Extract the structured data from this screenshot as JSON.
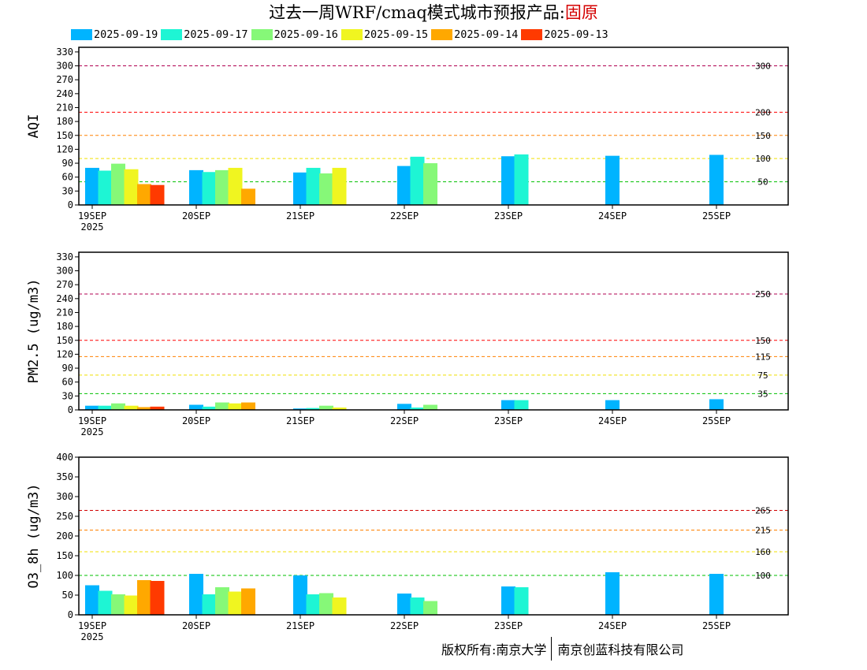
{
  "title": {
    "prefix": "过去一周WRF/cmaq模式城市预报产品:",
    "city": "固原"
  },
  "colors": {
    "2025-09-19": "#00b4ff",
    "2025-09-17": "#1ef5d4",
    "2025-09-16": "#86f878",
    "2025-09-15": "#f0f520",
    "2025-09-14": "#ffa800",
    "2025-09-13": "#ff3a00"
  },
  "legend": [
    "2025-09-19",
    "2025-09-17",
    "2025-09-16",
    "2025-09-15",
    "2025-09-14",
    "2025-09-13"
  ],
  "chart_data": [
    {
      "type": "bar",
      "ylabel": "AQI",
      "ylim": [
        0,
        340
      ],
      "yticks": [
        0,
        30,
        60,
        90,
        120,
        150,
        180,
        210,
        240,
        270,
        300,
        330
      ],
      "x_tick_labels": [
        "19SEP",
        "20SEP",
        "21SEP",
        "22SEP",
        "23SEP",
        "24SEP",
        "25SEP"
      ],
      "x_year_label": "2025",
      "reference_lines": [
        {
          "value": 50,
          "label": "50",
          "color": "#00c000"
        },
        {
          "value": 100,
          "label": "100",
          "color": "#f0e000"
        },
        {
          "value": 150,
          "label": "150",
          "color": "#ff8000"
        },
        {
          "value": 200,
          "label": "200",
          "color": "#ff0000"
        },
        {
          "value": 300,
          "label": "300",
          "color": "#b00050"
        }
      ],
      "days": [
        {
          "day": "19SEP",
          "bars": [
            {
              "run": "2025-09-19",
              "value": 80
            },
            {
              "run": "2025-09-17",
              "value": 74
            },
            {
              "run": "2025-09-16",
              "value": 89
            },
            {
              "run": "2025-09-15",
              "value": 77
            },
            {
              "run": "2025-09-14",
              "value": 45
            },
            {
              "run": "2025-09-13",
              "value": 43
            }
          ]
        },
        {
          "day": "20SEP",
          "bars": [
            {
              "run": "2025-09-19",
              "value": 75
            },
            {
              "run": "2025-09-17",
              "value": 71
            },
            {
              "run": "2025-09-16",
              "value": 75
            },
            {
              "run": "2025-09-15",
              "value": 80
            },
            {
              "run": "2025-09-14",
              "value": 35
            }
          ]
        },
        {
          "day": "21SEP",
          "bars": [
            {
              "run": "2025-09-19",
              "value": 70
            },
            {
              "run": "2025-09-17",
              "value": 80
            },
            {
              "run": "2025-09-16",
              "value": 68
            },
            {
              "run": "2025-09-15",
              "value": 80
            }
          ]
        },
        {
          "day": "22SEP",
          "bars": [
            {
              "run": "2025-09-19",
              "value": 84
            },
            {
              "run": "2025-09-17",
              "value": 104
            },
            {
              "run": "2025-09-16",
              "value": 90
            }
          ]
        },
        {
          "day": "23SEP",
          "bars": [
            {
              "run": "2025-09-19",
              "value": 105
            },
            {
              "run": "2025-09-17",
              "value": 109
            }
          ]
        },
        {
          "day": "24SEP",
          "bars": [
            {
              "run": "2025-09-19",
              "value": 106
            }
          ]
        },
        {
          "day": "25SEP",
          "bars": [
            {
              "run": "2025-09-19",
              "value": 108
            }
          ]
        }
      ]
    },
    {
      "type": "bar",
      "ylabel": "PM2.5 (ug/m3)",
      "ylim": [
        0,
        340
      ],
      "yticks": [
        0,
        30,
        60,
        90,
        120,
        150,
        180,
        210,
        240,
        270,
        300,
        330
      ],
      "x_tick_labels": [
        "19SEP",
        "20SEP",
        "21SEP",
        "22SEP",
        "23SEP",
        "24SEP",
        "25SEP"
      ],
      "x_year_label": "2025",
      "reference_lines": [
        {
          "value": 35,
          "label": "35",
          "color": "#00c000"
        },
        {
          "value": 75,
          "label": "75",
          "color": "#f0e000"
        },
        {
          "value": 115,
          "label": "115",
          "color": "#ff8000"
        },
        {
          "value": 150,
          "label": "150",
          "color": "#ff0000"
        },
        {
          "value": 250,
          "label": "250",
          "color": "#b00050"
        }
      ],
      "days": [
        {
          "day": "19SEP",
          "bars": [
            {
              "run": "2025-09-19",
              "value": 9
            },
            {
              "run": "2025-09-17",
              "value": 9
            },
            {
              "run": "2025-09-16",
              "value": 14
            },
            {
              "run": "2025-09-15",
              "value": 9
            },
            {
              "run": "2025-09-14",
              "value": 6
            },
            {
              "run": "2025-09-13",
              "value": 7
            }
          ]
        },
        {
          "day": "20SEP",
          "bars": [
            {
              "run": "2025-09-19",
              "value": 11
            },
            {
              "run": "2025-09-17",
              "value": 7
            },
            {
              "run": "2025-09-16",
              "value": 16
            },
            {
              "run": "2025-09-15",
              "value": 14
            },
            {
              "run": "2025-09-14",
              "value": 16
            }
          ]
        },
        {
          "day": "21SEP",
          "bars": [
            {
              "run": "2025-09-19",
              "value": 3
            },
            {
              "run": "2025-09-17",
              "value": 4
            },
            {
              "run": "2025-09-16",
              "value": 9
            },
            {
              "run": "2025-09-15",
              "value": 5
            }
          ]
        },
        {
          "day": "22SEP",
          "bars": [
            {
              "run": "2025-09-19",
              "value": 13
            },
            {
              "run": "2025-09-17",
              "value": 5
            },
            {
              "run": "2025-09-16",
              "value": 11
            }
          ]
        },
        {
          "day": "23SEP",
          "bars": [
            {
              "run": "2025-09-19",
              "value": 21
            },
            {
              "run": "2025-09-17",
              "value": 21
            }
          ]
        },
        {
          "day": "24SEP",
          "bars": [
            {
              "run": "2025-09-19",
              "value": 21
            }
          ]
        },
        {
          "day": "25SEP",
          "bars": [
            {
              "run": "2025-09-19",
              "value": 23
            }
          ]
        }
      ]
    },
    {
      "type": "bar",
      "ylabel": "O3_8h (ug/m3)",
      "ylim": [
        0,
        400
      ],
      "yticks": [
        0,
        50,
        100,
        150,
        200,
        250,
        300,
        350,
        400
      ],
      "x_tick_labels": [
        "19SEP",
        "20SEP",
        "21SEP",
        "22SEP",
        "23SEP",
        "24SEP",
        "25SEP"
      ],
      "x_year_label": "2025",
      "reference_lines": [
        {
          "value": 100,
          "label": "100",
          "color": "#00c000"
        },
        {
          "value": 160,
          "label": "160",
          "color": "#f0e000"
        },
        {
          "value": 215,
          "label": "215",
          "color": "#ff8000"
        },
        {
          "value": 265,
          "label": "265",
          "color": "#d00000"
        }
      ],
      "days": [
        {
          "day": "19SEP",
          "bars": [
            {
              "run": "2025-09-19",
              "value": 75
            },
            {
              "run": "2025-09-17",
              "value": 61
            },
            {
              "run": "2025-09-16",
              "value": 52
            },
            {
              "run": "2025-09-15",
              "value": 49
            },
            {
              "run": "2025-09-14",
              "value": 88
            },
            {
              "run": "2025-09-13",
              "value": 86
            }
          ]
        },
        {
          "day": "20SEP",
          "bars": [
            {
              "run": "2025-09-19",
              "value": 104
            },
            {
              "run": "2025-09-17",
              "value": 52
            },
            {
              "run": "2025-09-16",
              "value": 70
            },
            {
              "run": "2025-09-15",
              "value": 59
            },
            {
              "run": "2025-09-14",
              "value": 67
            }
          ]
        },
        {
          "day": "21SEP",
          "bars": [
            {
              "run": "2025-09-19",
              "value": 100
            },
            {
              "run": "2025-09-17",
              "value": 52
            },
            {
              "run": "2025-09-16",
              "value": 55
            },
            {
              "run": "2025-09-15",
              "value": 44
            }
          ]
        },
        {
          "day": "22SEP",
          "bars": [
            {
              "run": "2025-09-19",
              "value": 54
            },
            {
              "run": "2025-09-17",
              "value": 44
            },
            {
              "run": "2025-09-16",
              "value": 35
            }
          ]
        },
        {
          "day": "23SEP",
          "bars": [
            {
              "run": "2025-09-19",
              "value": 72
            },
            {
              "run": "2025-09-17",
              "value": 70
            }
          ]
        },
        {
          "day": "24SEP",
          "bars": [
            {
              "run": "2025-09-19",
              "value": 108
            }
          ]
        },
        {
          "day": "25SEP",
          "bars": [
            {
              "run": "2025-09-19",
              "value": 104
            }
          ]
        }
      ]
    }
  ],
  "copyright": {
    "left": "版权所有:南京大学",
    "right": "南京创蓝科技有限公司"
  }
}
